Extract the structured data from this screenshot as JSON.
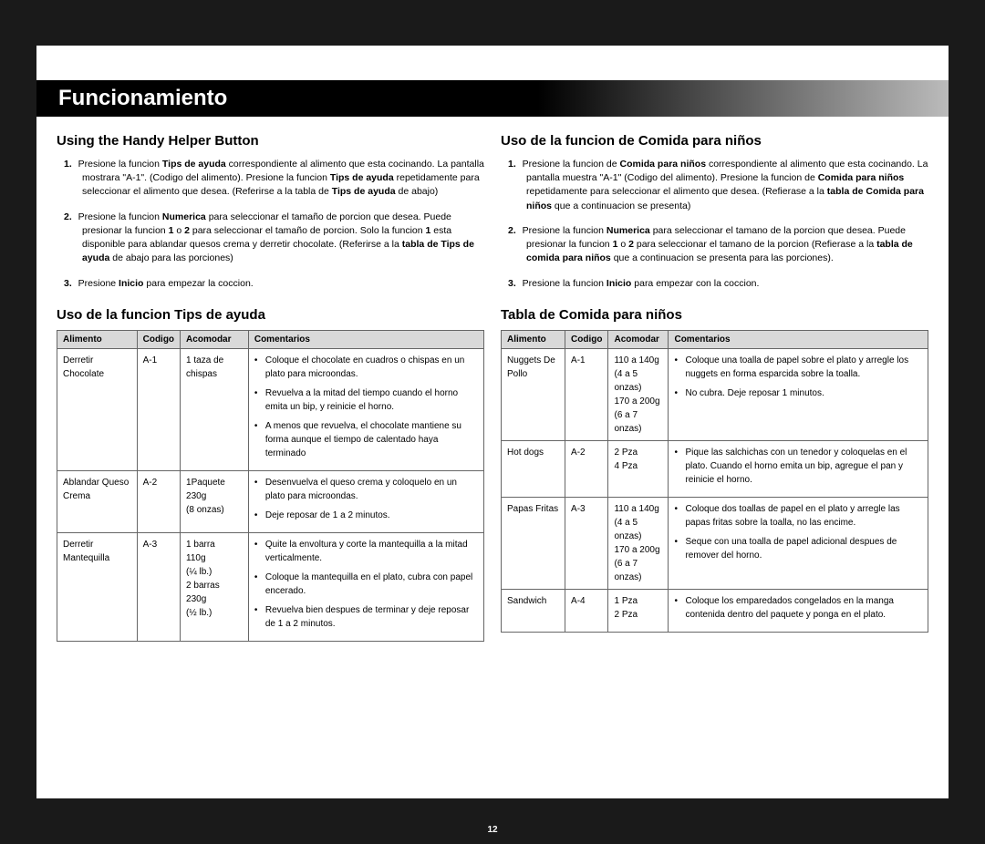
{
  "page_number": "12",
  "title": "Funcionamiento",
  "left": {
    "heading": "Using the Handy Helper Button",
    "steps": [
      {
        "n": "1.",
        "html": "Presione la funcion <b>Tips de ayuda</b> correspondiente al alimento que esta cocinando. La pantalla mostrara \"A-1\". (Codigo del alimento). Presione la funcion <b>Tips de ayuda</b> repetidamente para seleccionar el alimento que desea. (Referirse a la tabla de <b>Tips de ayuda</b> de abajo)"
      },
      {
        "n": "2.",
        "html": "Presione la funcion <b>Numerica</b> para seleccionar el tamaño de porcion que desea. Puede presionar la funcion <b>1</b> o <b>2</b> para seleccionar el tamaño de porcion. Solo la funcion <b>1</b> esta disponible para ablandar quesos crema y derretir chocolate. (Referirse a la <b>tabla de Tips de ayuda</b> de abajo para las porciones)"
      },
      {
        "n": "3.",
        "html": "Presione <b>Inicio</b> para empezar la coccion."
      }
    ],
    "table_heading": "Uso de la funcion Tips de ayuda",
    "columns": [
      "Alimento",
      "Codigo",
      "Acomodar",
      "Comentarios"
    ],
    "rows": [
      {
        "alimento": "Derretir Chocolate",
        "codigo": "A-1",
        "acomodar": "1 taza de chispas",
        "comentarios": [
          "Coloque el chocolate en cuadros o chispas en un plato para microondas.",
          "Revuelva a la mitad del tiempo cuando el horno emita un bip, y reinicie el horno.",
          "A menos que revuelva, el chocolate mantiene su forma aunque el tiempo de calentado haya terminado"
        ]
      },
      {
        "alimento": "Ablandar Queso Crema",
        "codigo": "A-2",
        "acomodar": "1Paquete\n230g\n(8 onzas)",
        "comentarios": [
          "Desenvuelva el queso crema y coloquelo en un plato para microondas.",
          "Deje reposar de 1 a 2 minutos."
        ]
      },
      {
        "alimento": "Derretir Mantequilla",
        "codigo": "A-3",
        "acomodar": "1 barra\n110g\n(¼ lb.)\n2 barras\n230g\n(½ lb.)",
        "comentarios": [
          "Quite la envoltura y corte la mantequilla a la mitad verticalmente.",
          "Coloque la mantequilla en el plato, cubra con papel encerado.",
          "Revuelva bien despues de terminar y deje reposar de 1 a 2 minutos."
        ]
      }
    ]
  },
  "right": {
    "heading": "Uso de la funcion de Comida para niños",
    "steps": [
      {
        "n": "1.",
        "html": "Presione la funcion de <b>Comida para niños</b> correspondiente al alimento que esta cocinando. La pantalla muestra \"A-1\" (Codigo del alimento). Presione la funcion de <b>Comida para niños</b> repetidamente para seleccionar el alimento que desea. (Refierase  a la <b>tabla de Comida para niños</b> que a continuacion se presenta)"
      },
      {
        "n": "2.",
        "html": "Presione la funcion <b>Numerica</b> para seleccionar el tamano de la porcion que desea. Puede presionar la funcion <b>1</b> o <b>2</b> para seleccionar el tamano de la porcion (Refierase  a la <b>tabla de comida para niños</b> que a continuacion se presenta  para las porciones)."
      },
      {
        "n": "3.",
        "html": "Presione la funcion <b>Inicio</b> para empezar con la coccion."
      }
    ],
    "table_heading": "Tabla de Comida para niños",
    "columns": [
      "Alimento",
      "Codigo",
      "Acomodar",
      "Comentarios"
    ],
    "rows": [
      {
        "alimento": "Nuggets De Pollo",
        "codigo": "A-1",
        "acomodar": "110 a 140g\n(4 a 5 onzas)\n170 a 200g\n(6 a 7 onzas)",
        "comentarios": [
          "Coloque una toalla de papel sobre el plato y arregle los nuggets en forma esparcida sobre la toalla.",
          "No cubra. Deje  reposar 1 minutos."
        ]
      },
      {
        "alimento": "Hot dogs",
        "codigo": "A-2",
        "acomodar": "2 Pza\n4 Pza",
        "comentarios": [
          "Pique las salchichas con un tenedor y coloquelas en  el plato. Cuando el horno emita un bip, agregue el pan y reinicie el horno."
        ]
      },
      {
        "alimento": "Papas Fritas",
        "codigo": "A-3",
        "acomodar": "110 a 140g\n(4 a 5 onzas)\n170 a 200g\n(6 a 7 onzas)",
        "comentarios": [
          "Coloque dos toallas de papel en el plato y arregle las papas fritas sobre la toalla, no las encime.",
          "Seque con una toalla de papel adicional despues de remover del horno."
        ]
      },
      {
        "alimento": "Sandwich",
        "codigo": "A-4",
        "acomodar": "1 Pza\n2 Pza",
        "comentarios": [
          "Coloque los emparedados congelados en la manga contenida dentro del paquete y ponga en el plato."
        ]
      }
    ]
  }
}
